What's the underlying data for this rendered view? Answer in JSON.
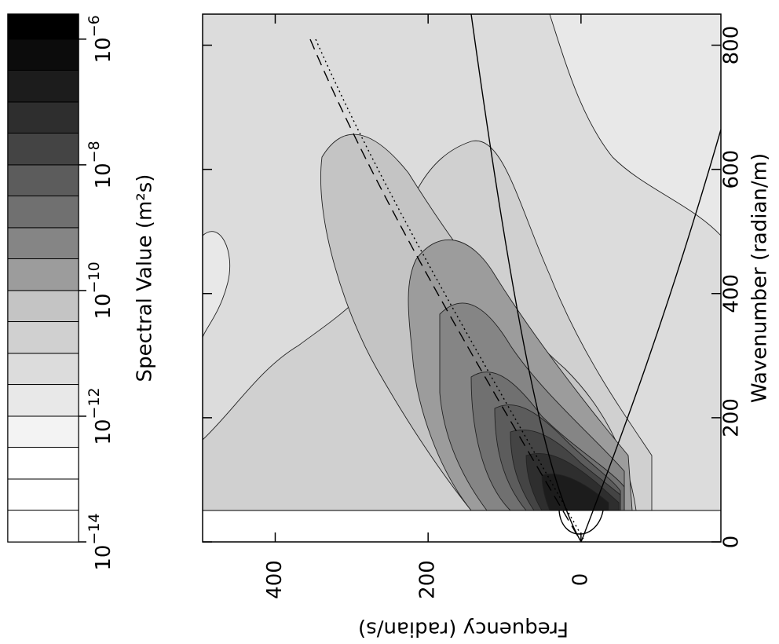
{
  "chart_data": {
    "type": "contour",
    "x_label": "Frequency (radian/s)",
    "y_label": "Wavenumber (radian/m)",
    "xlim": [
      495,
      -183
    ],
    "xticks": [
      400,
      200,
      0
    ],
    "ylim": [
      0,
      850
    ],
    "yticks": [
      0,
      200,
      400,
      600,
      800
    ],
    "colorbar": {
      "label": "Spectral Value (m²s)",
      "log_scale": true,
      "levels": [
        1e-14,
        3.2e-14,
        1e-13,
        3.2e-13,
        1e-12,
        3.2e-12,
        1e-11,
        3.2e-11,
        1e-10,
        3.2e-10,
        1e-09,
        3.2e-09,
        1e-08,
        3.2e-08,
        1e-07,
        3.2e-07,
        1e-06,
        2.5e-06
      ],
      "colors": [
        "#ffffff",
        "#ffffff",
        "#ffffff",
        "#f3f3f3",
        "#e8e8e8",
        "#dcdcdc",
        "#d0d0d0",
        "#c4c4c4",
        "#9c9c9c",
        "#858585",
        "#707070",
        "#5c5c5c",
        "#444444",
        "#2e2e2e",
        "#1c1c1c",
        "#0c0c0c",
        "#000000"
      ],
      "ticks": [
        {
          "value": 1e-14,
          "label": "10",
          "exponent": "−14"
        },
        {
          "value": 1e-12,
          "label": "10",
          "exponent": "−12"
        },
        {
          "value": 1e-10,
          "label": "10",
          "exponent": "−10"
        },
        {
          "value": 1e-08,
          "label": "10",
          "exponent": "−8"
        },
        {
          "value": 1e-06,
          "label": "10",
          "exponent": "−6"
        }
      ]
    }
  }
}
